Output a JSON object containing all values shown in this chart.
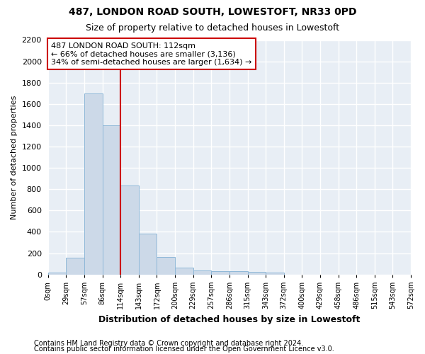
{
  "title": "487, LONDON ROAD SOUTH, LOWESTOFT, NR33 0PD",
  "subtitle": "Size of property relative to detached houses in Lowestoft",
  "xlabel": "Distribution of detached houses by size in Lowestoft",
  "ylabel": "Number of detached properties",
  "footnote1": "Contains HM Land Registry data © Crown copyright and database right 2024.",
  "footnote2": "Contains public sector information licensed under the Open Government Licence v3.0.",
  "bar_color": "#ccd9e8",
  "bar_edge_color": "#8fb8d8",
  "background_color": "#e8eef5",
  "grid_color": "#ffffff",
  "property_line_x": 114.84,
  "property_line_color": "#cc0000",
  "annotation_text": "487 LONDON ROAD SOUTH: 112sqm\n← 66% of detached houses are smaller (3,136)\n34% of semi-detached houses are larger (1,634) →",
  "annotation_box_color": "#cc0000",
  "bin_edges": [
    0,
    28.71,
    57.42,
    86.13,
    114.84,
    143.55,
    172.26,
    200.97,
    229.68,
    258.39,
    287.1,
    315.81,
    344.52,
    373.23,
    401.94,
    430.65,
    459.36,
    488.07,
    516.78,
    545.49,
    574.2
  ],
  "bin_counts": [
    15,
    155,
    1700,
    1400,
    835,
    385,
    165,
    65,
    40,
    30,
    30,
    25,
    15,
    0,
    0,
    0,
    0,
    0,
    0,
    0
  ],
  "tick_labels": [
    "0sqm",
    "29sqm",
    "57sqm",
    "86sqm",
    "114sqm",
    "143sqm",
    "172sqm",
    "200sqm",
    "229sqm",
    "257sqm",
    "286sqm",
    "315sqm",
    "343sqm",
    "372sqm",
    "400sqm",
    "429sqm",
    "458sqm",
    "486sqm",
    "515sqm",
    "543sqm",
    "572sqm"
  ],
  "ylim": [
    0,
    2200
  ],
  "yticks": [
    0,
    200,
    400,
    600,
    800,
    1000,
    1200,
    1400,
    1600,
    1800,
    2000,
    2200
  ],
  "title_fontsize": 10,
  "subtitle_fontsize": 9,
  "ylabel_fontsize": 8,
  "xlabel_fontsize": 9,
  "ytick_fontsize": 8,
  "xtick_fontsize": 7,
  "annotation_fontsize": 8,
  "footnote_fontsize": 7
}
